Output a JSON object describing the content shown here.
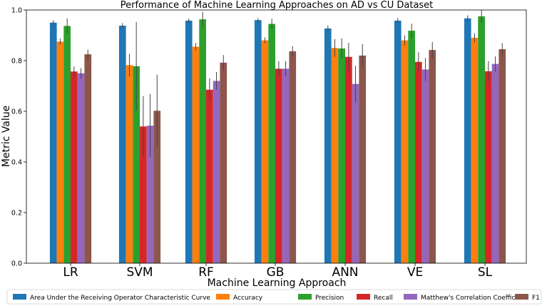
{
  "chart_data": {
    "type": "bar",
    "title": "Performance of Machine Learning Approaches on AD vs CU Dataset",
    "xlabel": "Machine Learning Approach",
    "ylabel": "Metric Value",
    "ylim": [
      0,
      1.0
    ],
    "yticks": [
      "0.0",
      "0.2",
      "0.4",
      "0.6",
      "0.8",
      "1.0"
    ],
    "categories": [
      "LR",
      "SVM",
      "RF",
      "GB",
      "ANN",
      "VE",
      "SL"
    ],
    "legend_position": "bottom",
    "series": [
      {
        "name": "Area Under the Receiving Operator Characteristic Curve",
        "color": "#1f77b4",
        "values": [
          0.95,
          0.938,
          0.958,
          0.96,
          0.927,
          0.958,
          0.967
        ],
        "errors": [
          0.01,
          0.01,
          0.008,
          0.008,
          0.012,
          0.01,
          0.012
        ]
      },
      {
        "name": "Accuracy",
        "color": "#ff7f0e",
        "values": [
          0.875,
          0.782,
          0.855,
          0.88,
          0.85,
          0.88,
          0.89
        ],
        "errors": [
          0.012,
          0.045,
          0.015,
          0.012,
          0.035,
          0.02,
          0.018
        ]
      },
      {
        "name": "Precision",
        "color": "#2ca02c",
        "values": [
          0.937,
          0.778,
          0.963,
          0.945,
          0.848,
          0.918,
          0.975
        ],
        "errors": [
          0.03,
          0.175,
          0.03,
          0.02,
          0.04,
          0.028,
          0.025
        ]
      },
      {
        "name": "Recall",
        "color": "#d62728",
        "values": [
          0.757,
          0.54,
          0.685,
          0.768,
          0.815,
          0.795,
          0.758
        ],
        "errors": [
          0.02,
          0.12,
          0.045,
          0.03,
          0.055,
          0.038,
          0.04
        ]
      },
      {
        "name": "Matthew's Correlation Coefficient",
        "color": "#9467bd",
        "values": [
          0.75,
          0.543,
          0.72,
          0.768,
          0.708,
          0.765,
          0.787
        ],
        "errors": [
          0.02,
          0.125,
          0.035,
          0.03,
          0.072,
          0.045,
          0.03
        ]
      },
      {
        "name": "F1",
        "color": "#8c564b",
        "values": [
          0.825,
          0.602,
          0.792,
          0.837,
          0.82,
          0.842,
          0.845
        ],
        "errors": [
          0.018,
          0.142,
          0.03,
          0.02,
          0.045,
          0.032,
          0.024
        ]
      }
    ]
  }
}
